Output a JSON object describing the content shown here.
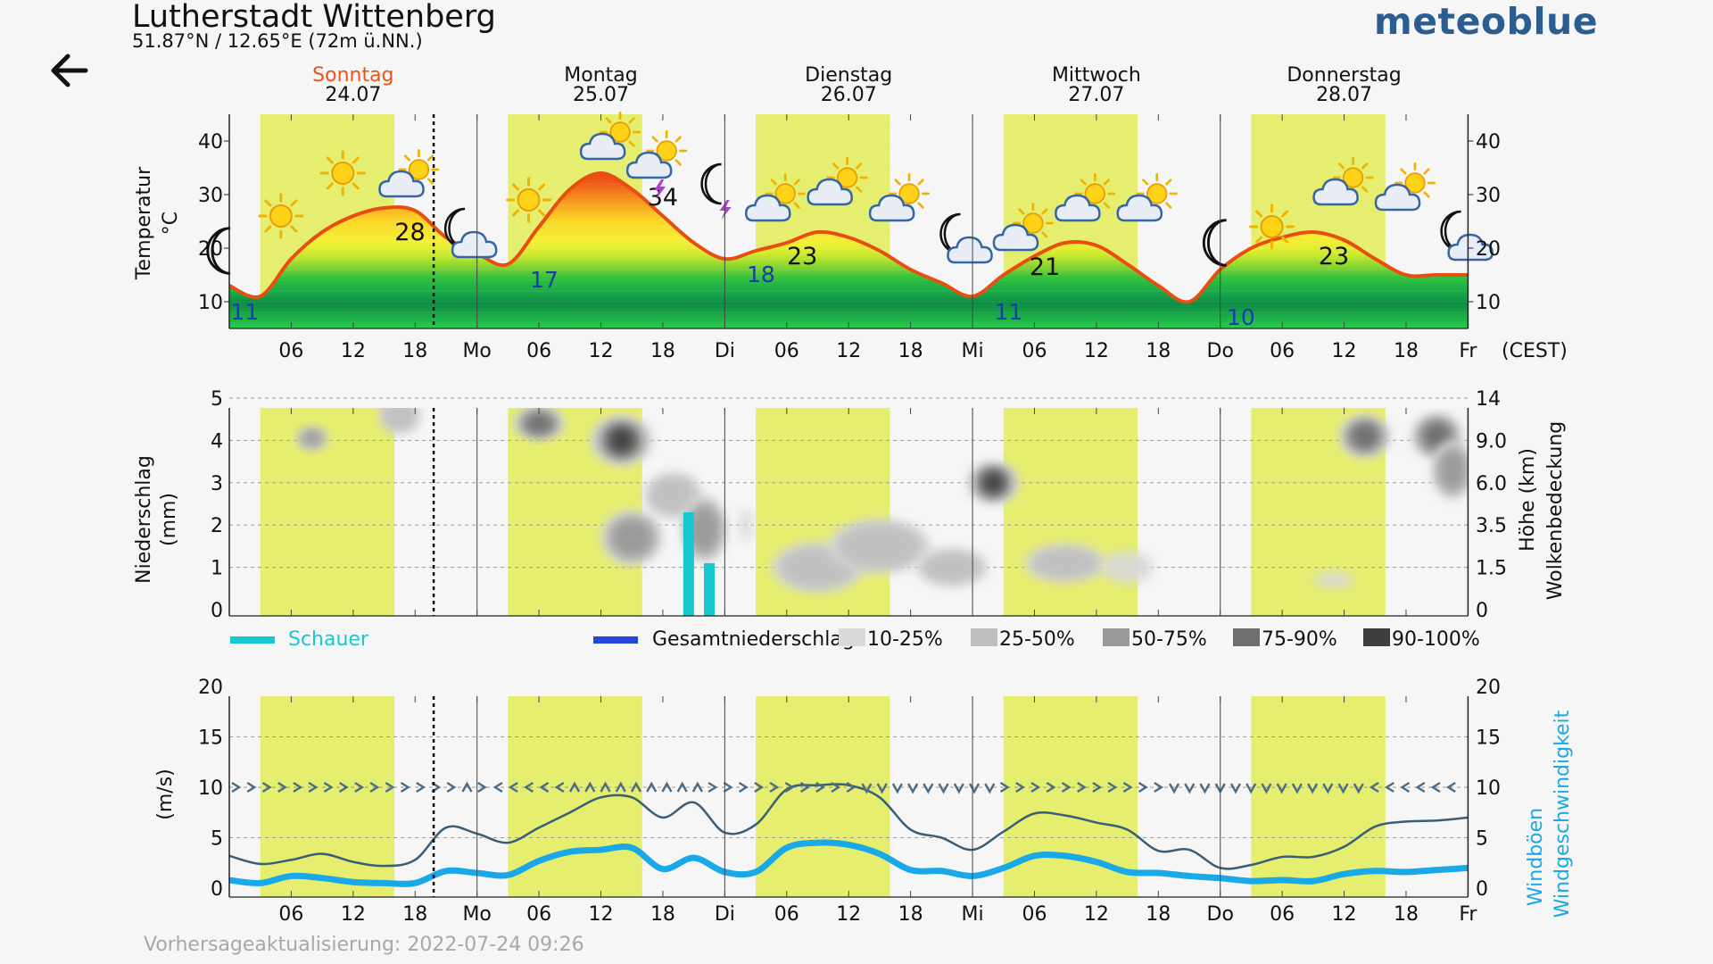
{
  "header": {
    "back_icon": "arrow-left-icon",
    "location": "Lutherstadt Wittenberg",
    "coordinates": "51.87°N / 12.65°E (72m ü.NN.)",
    "logo": "meteoblue"
  },
  "days": [
    {
      "name": "Sonntag",
      "date": "24.07",
      "today": true
    },
    {
      "name": "Montag",
      "date": "25.07",
      "today": false
    },
    {
      "name": "Dienstag",
      "date": "26.07",
      "today": false
    },
    {
      "name": "Mittwoch",
      "date": "27.07",
      "today": false
    },
    {
      "name": "Donnerstag",
      "date": "28.07",
      "today": false
    }
  ],
  "colors": {
    "today": "#e8551b",
    "daylight": "#e5ee6e",
    "temp_line": "#e84e10",
    "shower": "#18c8d0",
    "total_precip": "#2547d9",
    "wind_line": "#3a5d78",
    "gust_line": "#19a8e8",
    "min_label": "#1a3bb0"
  },
  "time_axis": {
    "labels": [
      "06",
      "12",
      "18",
      "Mo",
      "06",
      "12",
      "18",
      "Di",
      "06",
      "12",
      "18",
      "Mi",
      "06",
      "12",
      "18",
      "Do",
      "06",
      "12",
      "18",
      "Fr"
    ],
    "timezone": "(CEST)"
  },
  "chart_data": [
    {
      "type": "area",
      "name": "temperature",
      "ylabel": "Temperatur",
      "yunit": "°C",
      "ylim": [
        5,
        45
      ],
      "yticks": [
        10,
        20,
        30,
        40
      ],
      "x_hours": [
        0,
        3,
        6,
        9,
        12,
        15,
        18,
        21,
        24,
        27,
        30,
        33,
        36,
        39,
        42,
        45,
        48,
        51,
        54,
        57,
        60,
        63,
        66,
        69,
        72,
        75,
        78,
        81,
        84,
        87,
        90,
        93,
        96,
        99,
        102,
        105,
        108,
        111,
        114,
        117,
        120
      ],
      "values": [
        13,
        11,
        18,
        23,
        26,
        27.5,
        27,
        22,
        19,
        17,
        24,
        31,
        34,
        31,
        26,
        21,
        18,
        19.5,
        21,
        23,
        22,
        19.5,
        16,
        13.5,
        11,
        15,
        18.5,
        21,
        20.5,
        17,
        13,
        10,
        16,
        20,
        22,
        23,
        21.5,
        18,
        15,
        15,
        15
      ],
      "annotations": {
        "max": [
          {
            "day": 0,
            "value": "28"
          },
          {
            "day": 1,
            "value": "34"
          },
          {
            "day": 2,
            "value": "23"
          },
          {
            "day": 3,
            "value": "21"
          },
          {
            "day": 4,
            "value": "23"
          }
        ],
        "min": [
          {
            "day": 0,
            "value": "11"
          },
          {
            "day": 1,
            "value": "17"
          },
          {
            "day": 2,
            "value": "18"
          },
          {
            "day": 3,
            "value": "11"
          },
          {
            "day": 4,
            "value": "10"
          }
        ]
      },
      "icons": [
        {
          "h": -0.5,
          "t": 19.5,
          "icon": "moon"
        },
        {
          "h": 5,
          "t": 26,
          "icon": "sun"
        },
        {
          "h": 11,
          "t": 34,
          "icon": "sun"
        },
        {
          "h": 17.5,
          "t": 33,
          "icon": "sun-cloud"
        },
        {
          "h": 23,
          "t": 23,
          "icon": "moon-cloud"
        },
        {
          "h": 29,
          "t": 29,
          "icon": "sun"
        },
        {
          "h": 37,
          "t": 40,
          "icon": "sun-cloud"
        },
        {
          "h": 41.5,
          "t": 36.5,
          "icon": "sun-cloud-thunder"
        },
        {
          "h": 47.5,
          "t": 31,
          "icon": "moon-thunder"
        },
        {
          "h": 53,
          "t": 28.5,
          "icon": "sun-cloud"
        },
        {
          "h": 59,
          "t": 31.5,
          "icon": "sun-cloud"
        },
        {
          "h": 65,
          "t": 28.5,
          "icon": "sun-cloud"
        },
        {
          "h": 71,
          "t": 22,
          "icon": "moon-cloud"
        },
        {
          "h": 77,
          "t": 23,
          "icon": "sun-cloud"
        },
        {
          "h": 83,
          "t": 28.5,
          "icon": "sun-cloud"
        },
        {
          "h": 89,
          "t": 28.5,
          "icon": "sun-cloud"
        },
        {
          "h": 96,
          "t": 21,
          "icon": "moon"
        },
        {
          "h": 101,
          "t": 24,
          "icon": "sun"
        },
        {
          "h": 108,
          "t": 31.5,
          "icon": "sun-cloud"
        },
        {
          "h": 114,
          "t": 30.5,
          "icon": "sun-cloud"
        },
        {
          "h": 119.5,
          "t": 22.5,
          "icon": "moon-cloud"
        }
      ]
    },
    {
      "type": "bar",
      "name": "precipitation",
      "ylabel": "Niederschlag",
      "yunit": "(mm)",
      "ylim": [
        0,
        5
      ],
      "yticks": [
        0,
        1,
        2,
        3,
        4,
        5
      ],
      "y2label": "Höhe (km)",
      "y2ticks": [
        "0",
        "1.5",
        "3.5",
        "6.0",
        "9.0",
        "14"
      ],
      "y3label": "Wolkenbedeckung",
      "series": [
        {
          "name": "Schauer",
          "bars": [
            {
              "h": 44.5,
              "value": 2.3
            },
            {
              "h": 46.5,
              "value": 1.1
            }
          ]
        },
        {
          "name": "Gesamtniederschlag",
          "bars": []
        }
      ],
      "cloud_cover_legend": [
        "10-25%",
        "25-50%",
        "50-75%",
        "75-90%",
        "90-100%"
      ],
      "cloud_blobs": [
        {
          "h": 8,
          "v": 4.05,
          "rw": 1.5,
          "rh": 0.15,
          "c": 3
        },
        {
          "h": 16.5,
          "v": 4.6,
          "rw": 2,
          "rh": 0.35,
          "c": 2
        },
        {
          "h": 30,
          "v": 4.4,
          "rw": 2.5,
          "rh": 0.28,
          "c": 4
        },
        {
          "h": 38,
          "v": 4.0,
          "rw": 3,
          "rh": 0.5,
          "c": 5
        },
        {
          "h": 43,
          "v": 2.7,
          "rw": 2.8,
          "rh": 0.45,
          "c": 2
        },
        {
          "h": 39,
          "v": 1.7,
          "rw": 3,
          "rh": 0.55,
          "c": 3
        },
        {
          "h": 46,
          "v": 1.9,
          "rw": 2.2,
          "rh": 0.7,
          "c": 3
        },
        {
          "h": 50,
          "v": 2.0,
          "rw": 0.6,
          "rh": 0.3,
          "c": 1
        },
        {
          "h": 57,
          "v": 1.0,
          "rw": 4.5,
          "rh": 0.5,
          "c": 2
        },
        {
          "h": 63,
          "v": 1.5,
          "rw": 5,
          "rh": 0.55,
          "c": 2
        },
        {
          "h": 70,
          "v": 1.0,
          "rw": 3.5,
          "rh": 0.35,
          "c": 2
        },
        {
          "h": 74,
          "v": 3.0,
          "rw": 2.5,
          "rh": 0.4,
          "c": 5
        },
        {
          "h": 81,
          "v": 1.1,
          "rw": 4,
          "rh": 0.35,
          "c": 2
        },
        {
          "h": 87,
          "v": 1.0,
          "rw": 2.5,
          "rh": 0.3,
          "c": 1
        },
        {
          "h": 107,
          "v": 0.7,
          "rw": 2,
          "rh": 0.1,
          "c": 1
        },
        {
          "h": 110,
          "v": 4.1,
          "rw": 2.5,
          "rh": 0.4,
          "c": 4
        },
        {
          "h": 117,
          "v": 4.1,
          "rw": 2.5,
          "rh": 0.45,
          "c": 4
        },
        {
          "h": 118.5,
          "v": 3.3,
          "rw": 2,
          "rh": 0.6,
          "c": 3
        }
      ]
    },
    {
      "type": "line",
      "name": "wind",
      "ylabel": "(m/s)",
      "ylim": [
        0,
        20
      ],
      "yticks": [
        0,
        5,
        10,
        15,
        20
      ],
      "y2labels": [
        "Windböen",
        "Windgeschwindigkeit"
      ],
      "x_hours": [
        0,
        3,
        6,
        9,
        12,
        15,
        18,
        21,
        24,
        27,
        30,
        33,
        36,
        39,
        42,
        45,
        48,
        51,
        54,
        57,
        60,
        63,
        66,
        69,
        72,
        75,
        78,
        81,
        84,
        87,
        90,
        93,
        96,
        99,
        102,
        105,
        108,
        111,
        114,
        117,
        120
      ],
      "gusts": [
        3.2,
        2.4,
        2.8,
        3.4,
        2.6,
        2.2,
        2.8,
        6,
        5.4,
        4.5,
        6,
        7.5,
        9,
        9,
        7,
        8.5,
        5.5,
        6.3,
        9.8,
        10.2,
        10.2,
        9,
        5.8,
        5,
        3.8,
        5.6,
        7.4,
        7.2,
        6.5,
        5.8,
        3.7,
        3.8,
        2,
        2.3,
        3.1,
        3.1,
        4.1,
        6.1,
        6.6,
        6.7,
        7
      ],
      "speed": [
        0.8,
        0.5,
        1.2,
        1,
        0.6,
        0.5,
        0.5,
        1.7,
        1.5,
        1.3,
        2.7,
        3.6,
        3.8,
        4,
        1.9,
        3,
        1.6,
        1.6,
        4,
        4.5,
        4.3,
        3.4,
        1.8,
        1.7,
        1.2,
        2,
        3.2,
        3.2,
        2.6,
        1.6,
        1.5,
        1.2,
        1.0,
        0.7,
        0.8,
        0.7,
        1.4,
        1.7,
        1.6,
        1.8,
        2
      ],
      "wind_direction_arrows": ">>>>>>>>>>>>>>>^><<<<<^^^^^^^^^>>>>>>>>>>vvvvvvvvv>>>>>>>>>>>vvvvvvvvvvvvv<<<<<<"
    }
  ],
  "footer": {
    "update": "Vorhersageaktualisierung: 2022-07-24 09:26"
  }
}
